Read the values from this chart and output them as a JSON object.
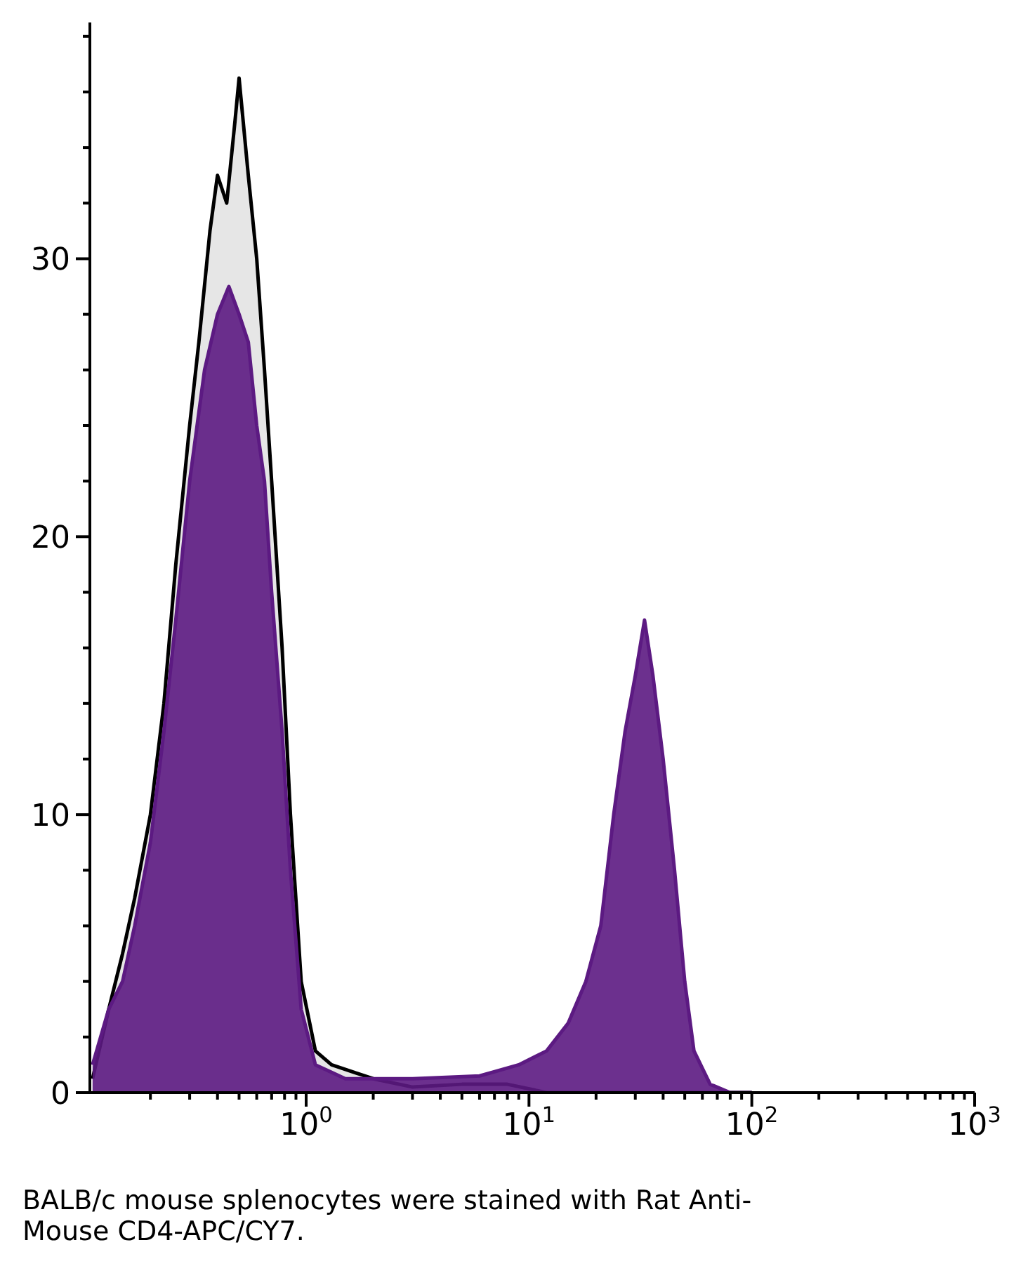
{
  "chart_data": {
    "type": "area",
    "log": "x",
    "annotations": [
      "BALB/c mouse splenocytes were stained with Rat Anti-Mouse CD4-APC/CY7."
    ],
    "xlim": [
      0.107,
      1000
    ],
    "xticks": [
      {
        "value": 0.2,
        "label": null
      },
      {
        "value": 0.3,
        "label": null
      },
      {
        "value": 0.4,
        "label": null
      },
      {
        "value": 0.5,
        "label": null
      },
      {
        "value": 0.6,
        "label": null
      },
      {
        "value": 0.7,
        "label": null
      },
      {
        "value": 0.8,
        "label": null
      },
      {
        "value": 0.9,
        "label": null
      },
      {
        "value": 1,
        "label": "10$^{0}$"
      },
      {
        "value": 2,
        "label": null
      },
      {
        "value": 3,
        "label": null
      },
      {
        "value": 4,
        "label": null
      },
      {
        "value": 5,
        "label": null
      },
      {
        "value": 6,
        "label": null
      },
      {
        "value": 7,
        "label": null
      },
      {
        "value": 8,
        "label": null
      },
      {
        "value": 9,
        "label": null
      },
      {
        "value": 10,
        "label": "10$^{1}$"
      },
      {
        "value": 20,
        "label": null
      },
      {
        "value": 30,
        "label": null
      },
      {
        "value": 40,
        "label": null
      },
      {
        "value": 50,
        "label": null
      },
      {
        "value": 60,
        "label": null
      },
      {
        "value": 70,
        "label": null
      },
      {
        "value": 80,
        "label": null
      },
      {
        "value": 90,
        "label": null
      },
      {
        "value": 100,
        "label": "10$^{2}$"
      },
      {
        "value": 200,
        "label": null
      },
      {
        "value": 300,
        "label": null
      },
      {
        "value": 400,
        "label": null
      },
      {
        "value": 500,
        "label": null
      },
      {
        "value": 600,
        "label": null
      },
      {
        "value": 700,
        "label": null
      },
      {
        "value": 800,
        "label": null
      },
      {
        "value": 900,
        "label": null
      },
      {
        "value": 1000,
        "label": "10$^{3}$"
      }
    ],
    "ylim": [
      0,
      38.5
    ],
    "yticks": [
      0,
      {
        "value": 2,
        "label": null
      },
      {
        "value": 4,
        "label": null
      },
      {
        "value": 6,
        "label": null
      },
      {
        "value": 8,
        "label": null
      },
      10,
      {
        "value": 12,
        "label": null
      },
      {
        "value": 14,
        "label": null
      },
      {
        "value": 16,
        "label": null
      },
      {
        "value": 18,
        "label": null
      },
      20,
      {
        "value": 22,
        "label": null
      },
      {
        "value": 24,
        "label": null
      },
      {
        "value": 26,
        "label": null
      },
      {
        "value": 28,
        "label": null
      },
      30,
      {
        "value": 32,
        "label": null
      },
      {
        "value": 34,
        "label": null
      },
      {
        "value": 36,
        "label": null
      },
      {
        "value": 38,
        "label": null
      }
    ],
    "series": [
      {
        "color": "#000000",
        "x": [
          0.11,
          0.13,
          0.15,
          0.17,
          0.2,
          0.23,
          0.26,
          0.3,
          0.33,
          0.37,
          0.4,
          0.44,
          0.48,
          0.5,
          0.55,
          0.6,
          0.65,
          0.7,
          0.78,
          0.85,
          0.95,
          1.1,
          1.3,
          2,
          3,
          5,
          8,
          12,
          100
        ],
        "values": [
          0.5,
          3,
          5,
          7,
          10,
          14,
          19,
          24,
          27,
          31,
          33,
          32,
          35,
          36.5,
          33,
          30,
          26,
          22,
          16,
          10,
          4,
          1.5,
          1,
          0.5,
          0.2,
          0.3,
          0.3,
          0,
          0
        ]
      },
      {
        "color": "#5c1a82",
        "x": [
          0.11,
          0.13,
          0.15,
          0.17,
          0.2,
          0.23,
          0.26,
          0.3,
          0.35,
          0.4,
          0.45,
          0.5,
          0.55,
          0.6,
          0.65,
          0.7,
          0.78,
          0.85,
          0.95,
          1.1,
          1.5,
          3,
          6,
          9,
          12,
          15,
          18,
          21,
          24,
          27,
          30,
          33,
          36,
          40,
          45,
          50,
          55,
          65,
          80,
          100
        ],
        "values": [
          1,
          3,
          4,
          6,
          9,
          13,
          17,
          22,
          26,
          28,
          29,
          28,
          27,
          24,
          22,
          18,
          13,
          8,
          3,
          1,
          0.5,
          0.5,
          0.6,
          1,
          1.5,
          2.5,
          4,
          6,
          10,
          13,
          15,
          17,
          15,
          12,
          8,
          4,
          1.5,
          0.3,
          0,
          0
        ]
      }
    ]
  }
}
